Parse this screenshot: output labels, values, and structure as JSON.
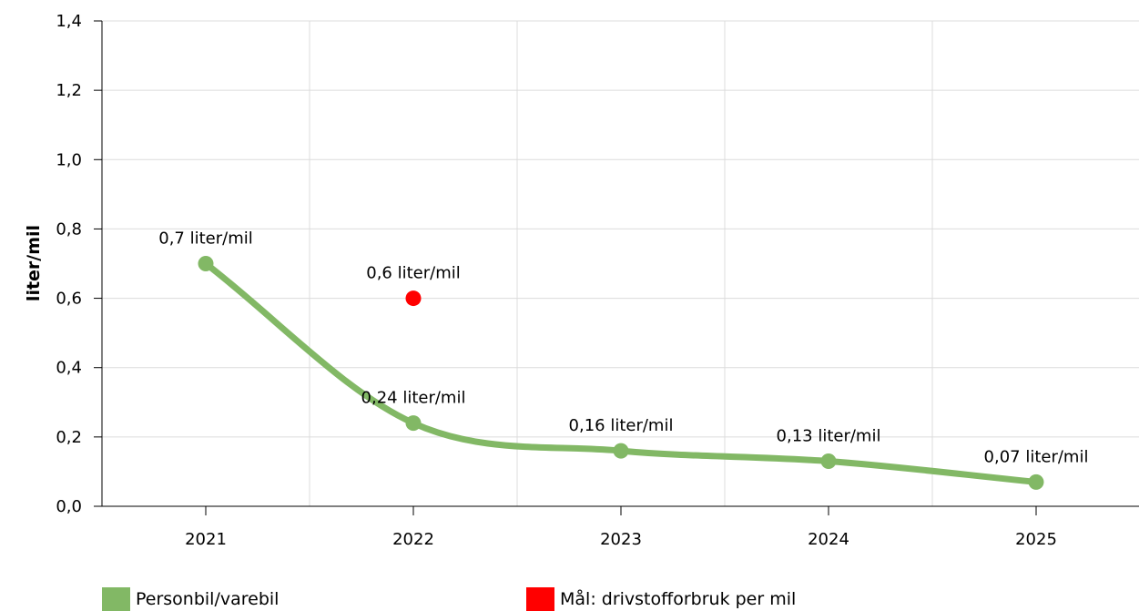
{
  "chart_data": {
    "type": "line",
    "categories": [
      "2021",
      "2022",
      "2023",
      "2024",
      "2025"
    ],
    "ylabel": "liter/mil",
    "ylim": [
      0,
      1.4
    ],
    "yticks": [
      "0,0",
      "0,2",
      "0,4",
      "0,6",
      "0,8",
      "1,0",
      "1,2",
      "1,4"
    ],
    "grid": true,
    "legend_position": "bottom",
    "series": [
      {
        "name": "Personbil/varebil",
        "type": "line",
        "color": "#82b865",
        "values": [
          0.7,
          0.24,
          0.16,
          0.13,
          0.07
        ],
        "labels": [
          "0,7 liter/mil",
          "0,24 liter/mil",
          "0,16 liter/mil",
          "0,13 liter/mil",
          "0,07 liter/mil"
        ]
      },
      {
        "name": "Mål: drivstofforbruk per mil",
        "type": "scatter",
        "color": "#ff0000",
        "x": [
          "2022"
        ],
        "values": [
          0.6
        ],
        "labels": [
          "0,6 liter/mil"
        ]
      }
    ]
  }
}
